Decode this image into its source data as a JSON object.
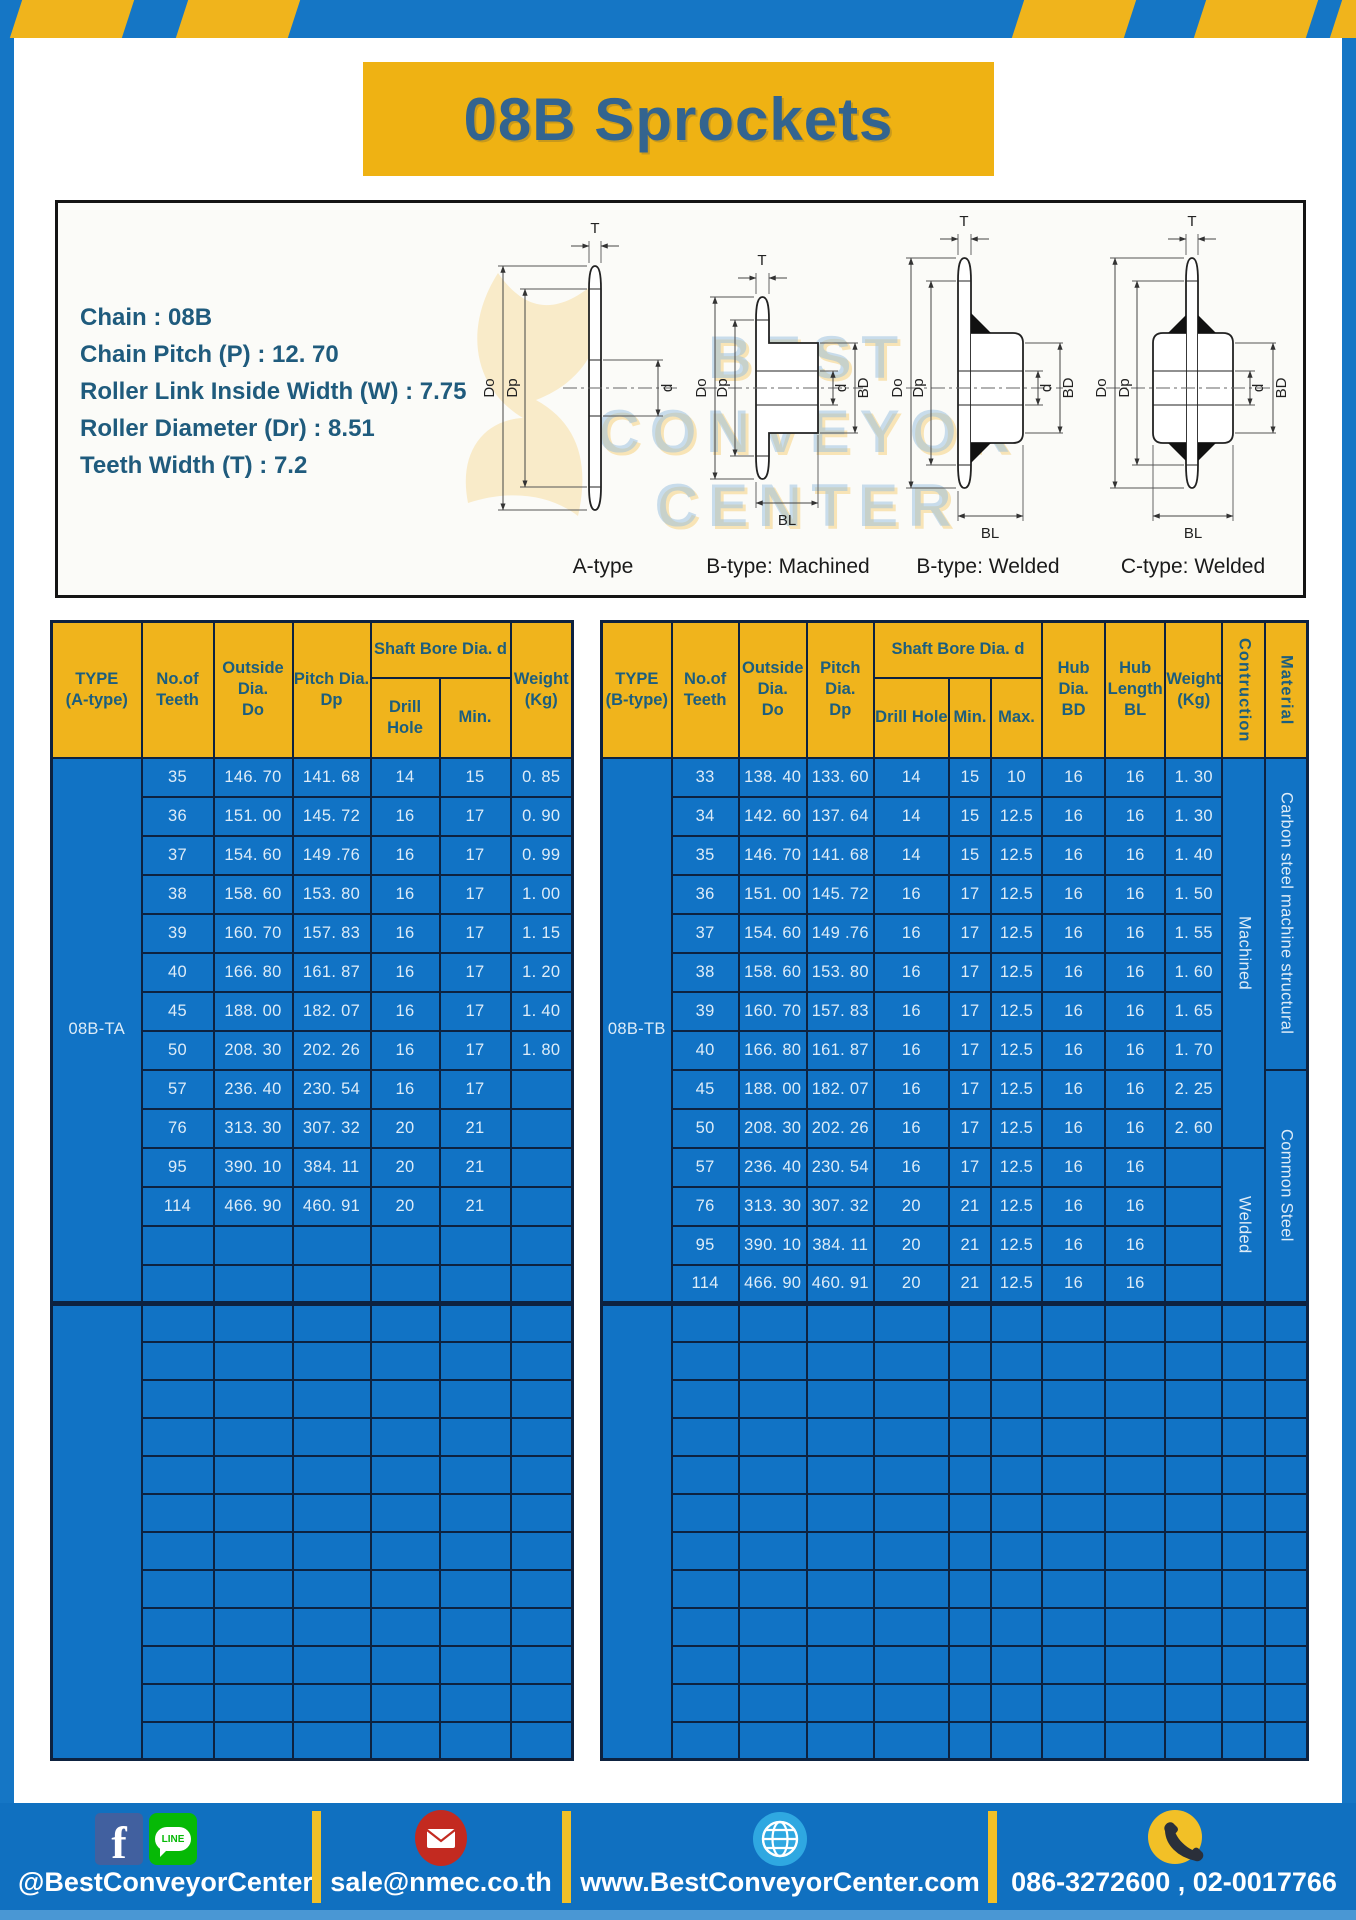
{
  "page": {
    "title": "08B Sprockets"
  },
  "colors": {
    "frame_blue": "#1576c5",
    "table_blue": "#1173c5",
    "accent_yellow": "#f0b41c",
    "border_navy": "#0d2240",
    "title_text": "#33648f",
    "header_text": "#1c5e7e",
    "footer_blue": "#1070c0"
  },
  "specs": {
    "lines": [
      "Chain  : 08B",
      "Chain Pitch (P)  :  12. 70",
      "Roller Link Inside Width (W)  :  7.75",
      "Roller Diameter (Dr)  : 8.51",
      "Teeth Width (T)  :  7.2"
    ]
  },
  "watermark": {
    "lines": [
      "BEST",
      "CONVEYOR",
      "CENTER"
    ]
  },
  "diagrams": {
    "labels": [
      "A-type",
      "B-type: Machined",
      "B-type: Welded",
      "C-type: Welded"
    ],
    "dims": {
      "T": "T",
      "Do": "Do",
      "Dp": "Dp",
      "d": "d",
      "BD": "BD",
      "BL": "BL"
    }
  },
  "table_a": {
    "header": {
      "type": "TYPE\n(A-type)",
      "teeth": "No.of\nTeeth",
      "outside": "Outside\nDia.\nDo",
      "pitch": "Pitch Dia.\nDp",
      "shaft_bore": "Shaft Bore Dia. d",
      "drill": "Drill Hole",
      "min": "Min.",
      "weight": "Weight\n(Kg)"
    },
    "type_label": "08B-TA",
    "rows": [
      [
        "35",
        "146. 70",
        "141. 68",
        "14",
        "15",
        "0. 85"
      ],
      [
        "36",
        "151. 00",
        "145. 72",
        "16",
        "17",
        "0. 90"
      ],
      [
        "37",
        "154. 60",
        "149 .76",
        "16",
        "17",
        "0. 99"
      ],
      [
        "38",
        "158. 60",
        "153. 80",
        "16",
        "17",
        "1. 00"
      ],
      [
        "39",
        "160. 70",
        "157. 83",
        "16",
        "17",
        "1. 15"
      ],
      [
        "40",
        "166. 80",
        "161. 87",
        "16",
        "17",
        "1. 20"
      ],
      [
        "45",
        "188. 00",
        "182. 07",
        "16",
        "17",
        "1. 40"
      ],
      [
        "50",
        "208. 30",
        "202. 26",
        "16",
        "17",
        "1. 80"
      ],
      [
        "57",
        "236. 40",
        "230. 54",
        "16",
        "17",
        ""
      ],
      [
        "76",
        "313. 30",
        "307. 32",
        "20",
        "21",
        ""
      ],
      [
        "95",
        "390. 10",
        "384. 11",
        "20",
        "21",
        ""
      ],
      [
        "114",
        "466. 90",
        "460. 91",
        "20",
        "21",
        ""
      ]
    ],
    "block1_total_rows": 14,
    "empty_block_rows": 12
  },
  "table_b": {
    "header": {
      "type": "TYPE\n(B-type)",
      "teeth": "No.of\nTeeth",
      "outside": "Outside\nDia.\nDo",
      "pitch": "Pitch Dia.\nDp",
      "shaft_bore": "Shaft Bore Dia. d",
      "drill": "Drill Hole",
      "min": "Min.",
      "max": "Max.",
      "hub_dia": "Hub Dia.\nBD",
      "hub_len": "Hub\nLength\nBL",
      "weight": "Weight\n(Kg)",
      "construction": "Contruction",
      "material": "Material"
    },
    "type_label": "08B-TB",
    "rows": [
      [
        "33",
        "138. 40",
        "133. 60",
        "14",
        "15",
        "10",
        "16",
        "16",
        "1. 30"
      ],
      [
        "34",
        "142. 60",
        "137. 64",
        "14",
        "15",
        "12.5",
        "16",
        "16",
        "1. 30"
      ],
      [
        "35",
        "146. 70",
        "141. 68",
        "14",
        "15",
        "12.5",
        "16",
        "16",
        "1. 40"
      ],
      [
        "36",
        "151. 00",
        "145. 72",
        "16",
        "17",
        "12.5",
        "16",
        "16",
        "1. 50"
      ],
      [
        "37",
        "154. 60",
        "149 .76",
        "16",
        "17",
        "12.5",
        "16",
        "16",
        "1. 55"
      ],
      [
        "38",
        "158. 60",
        "153. 80",
        "16",
        "17",
        "12.5",
        "16",
        "16",
        "1. 60"
      ],
      [
        "39",
        "160. 70",
        "157. 83",
        "16",
        "17",
        "12.5",
        "16",
        "16",
        "1. 65"
      ],
      [
        "40",
        "166. 80",
        "161. 87",
        "16",
        "17",
        "12.5",
        "16",
        "16",
        "1. 70"
      ],
      [
        "45",
        "188. 00",
        "182. 07",
        "16",
        "17",
        "12.5",
        "16",
        "16",
        "2. 25"
      ],
      [
        "50",
        "208. 30",
        "202. 26",
        "16",
        "17",
        "12.5",
        "16",
        "16",
        "2. 60"
      ],
      [
        "57",
        "236. 40",
        "230. 54",
        "16",
        "17",
        "12.5",
        "16",
        "16",
        ""
      ],
      [
        "76",
        "313. 30",
        "307. 32",
        "20",
        "21",
        "12.5",
        "16",
        "16",
        ""
      ],
      [
        "95",
        "390. 10",
        "384. 11",
        "20",
        "21",
        "12.5",
        "16",
        "16",
        ""
      ],
      [
        "114",
        "466. 90",
        "460. 91",
        "20",
        "21",
        "12.5",
        "16",
        "16",
        ""
      ]
    ],
    "construction": [
      {
        "label": "Machined",
        "span": 10
      },
      {
        "label": "Welded",
        "span": 4
      }
    ],
    "material": [
      {
        "label": "Carbon steel  machine  structural",
        "span": 8
      },
      {
        "label": "Common  Steel",
        "span": 6
      }
    ],
    "block1_total_rows": 14,
    "empty_block_rows": 12
  },
  "footer": {
    "social_text": "@BestConveyorCenter",
    "email": "sale@nmec.co.th",
    "website": "www.BestConveyorCenter.com",
    "phones": "086-3272600 , 02-0017766",
    "line_label": "LINE",
    "fb_letter": "f"
  }
}
